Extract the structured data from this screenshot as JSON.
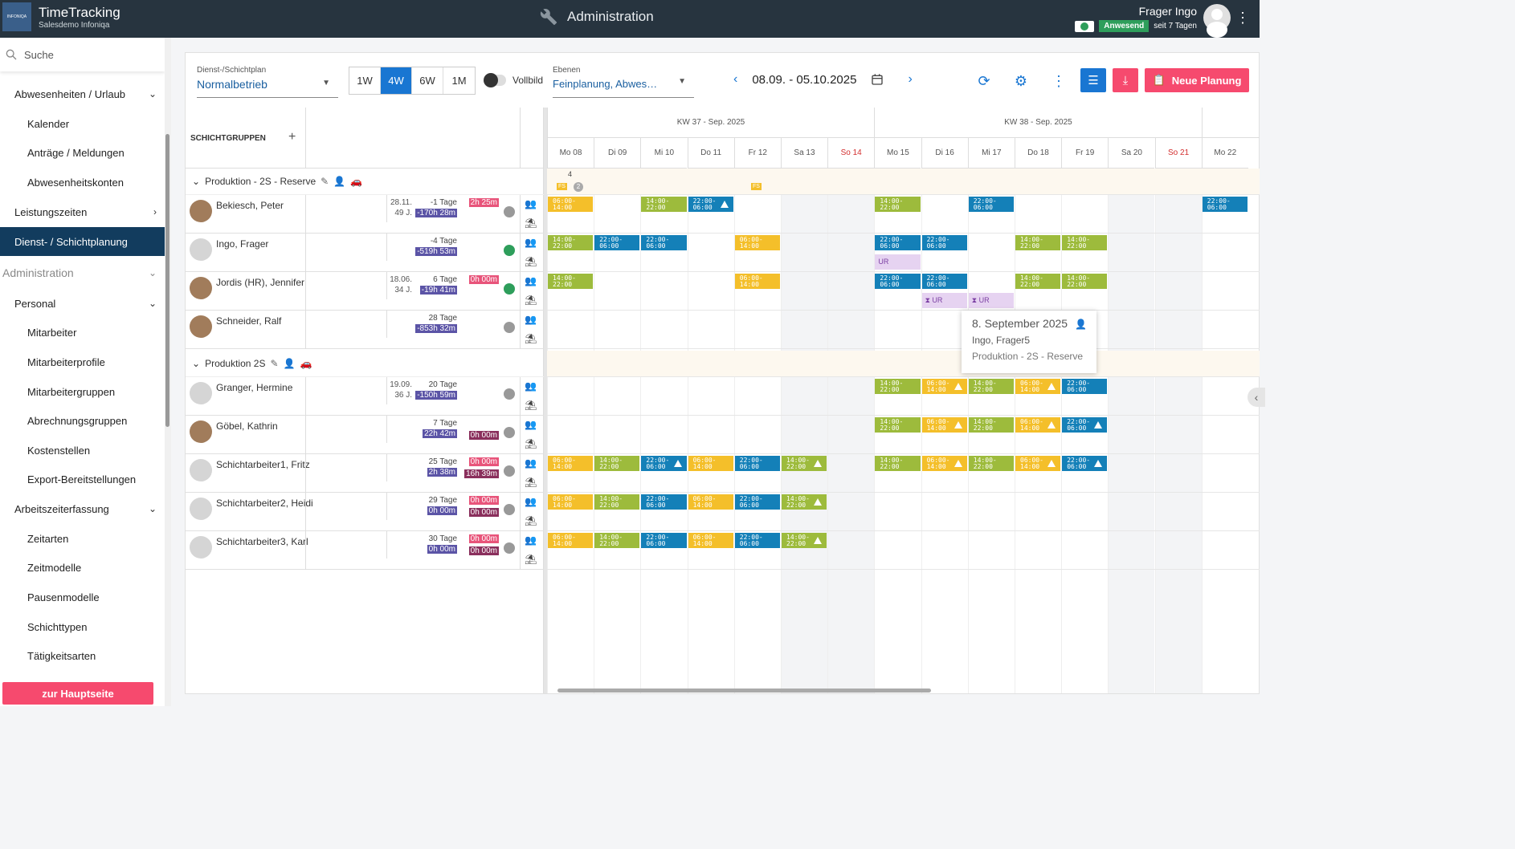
{
  "topbar": {
    "logo_text": "INFONIQA",
    "app_title": "TimeTracking",
    "app_subtitle": "Salesdemo Infoniqa",
    "section_title": "Administration",
    "user_name": "Frager Ingo",
    "user_status": "Anwesend",
    "user_since": "seit 7 Tagen"
  },
  "sidebar": {
    "search_placeholder": "Suche",
    "items": [
      {
        "label": "Abwesenheiten / Urlaub"
      },
      {
        "label": "Kalender"
      },
      {
        "label": "Anträge / Meldungen"
      },
      {
        "label": "Abwesenheitskonten"
      },
      {
        "label": "Leistungszeiten"
      },
      {
        "label": "Dienst- / Schichtplanung"
      },
      {
        "label": "Administration"
      },
      {
        "label": "Personal"
      },
      {
        "label": "Mitarbeiter"
      },
      {
        "label": "Mitarbeiterprofile"
      },
      {
        "label": "Mitarbeitergruppen"
      },
      {
        "label": "Abrechnungsgruppen"
      },
      {
        "label": "Kostenstellen"
      },
      {
        "label": "Export-Bereitstellungen"
      },
      {
        "label": "Arbeitszeiterfassung"
      },
      {
        "label": "Zeitarten"
      },
      {
        "label": "Zeitmodelle"
      },
      {
        "label": "Pausenmodelle"
      },
      {
        "label": "Schichttypen"
      },
      {
        "label": "Tätigkeitsarten"
      }
    ],
    "home_button": "zur Hauptseite"
  },
  "toolbar": {
    "plan_label": "Dienst-/Schichtplan",
    "plan_value": "Normalbetrieb",
    "ranges": [
      "1W",
      "4W",
      "6W",
      "1M"
    ],
    "range_selected": "4W",
    "fullscreen_label": "Vollbild",
    "levels_label": "Ebenen",
    "levels_value": "Feinplanung, Abwes…",
    "date_range": "08.09. - 05.10.2025",
    "new_plan_button": "Neue Planung"
  },
  "grid": {
    "groups_header": "SCHICHTGRUPPEN",
    "weeks": [
      "KW 37 - Sep. 2025",
      "KW 38 - Sep. 2025"
    ],
    "days": [
      "Mo 08",
      "Di 09",
      "Mi 10",
      "Do 11",
      "Fr 12",
      "Sa 13",
      "So 14",
      "Mo 15",
      "Di 16",
      "Mi 17",
      "Do 18",
      "Fr 19",
      "Sa 20",
      "So 21",
      "Mo 22"
    ],
    "groups": [
      {
        "name": "Produktion - 2S - Reserve",
        "count": "4",
        "fs_badge": "FS",
        "circle_badge": "2"
      },
      {
        "name": "Produktion 2S"
      }
    ],
    "employees": [
      {
        "name": "Bekiesch, Peter",
        "date": "28.11.",
        "age": "49 J.",
        "days": "-1 Tage",
        "balance": "-170h 28m",
        "overtime": "2h 25m"
      },
      {
        "name": "Ingo, Frager",
        "days": "-4 Tage",
        "balance": "-519h 53m"
      },
      {
        "name": "Jordis (HR), Jennifer",
        "date": "18.06.",
        "age": "34 J.",
        "days": "6 Tage",
        "balance": "-19h 41m",
        "overtime": "0h 00m"
      },
      {
        "name": "Schneider, Ralf",
        "days": "28 Tage",
        "balance": "-853h 32m"
      },
      {
        "name": "Granger, Hermine",
        "date": "19.09.",
        "age": "36 J.",
        "days": "20 Tage",
        "balance": "-150h 59m"
      },
      {
        "name": "Göbel, Kathrin",
        "days": "7 Tage",
        "balance": "22h 42m",
        "overtime2": "0h 00m"
      },
      {
        "name": "Schichtarbeiter1, Fritz",
        "days": "25 Tage",
        "balance": "2h 38m",
        "overtime": "0h 00m",
        "overtime2": "16h 39m"
      },
      {
        "name": "Schichtarbeiter2, Heidi",
        "days": "29 Tage",
        "balance": "0h 00m",
        "overtime": "0h 00m",
        "overtime2": "0h 00m"
      },
      {
        "name": "Schichtarbeiter3, Karl",
        "days": "30 Tage",
        "balance": "0h 00m",
        "overtime": "0h 00m",
        "overtime2": "0h 00m"
      }
    ],
    "shift_labels": {
      "early": [
        "06:00-",
        "14:00"
      ],
      "late": [
        "14:00-",
        "22:00"
      ],
      "night": [
        "22:00-",
        "06:00"
      ]
    },
    "ur_label": "UR",
    "fs_label": "FS",
    "tooltip": {
      "date": "8. September 2025",
      "employee": "Ingo, Frager5",
      "group": "Produktion - 2S - Reserve"
    }
  }
}
